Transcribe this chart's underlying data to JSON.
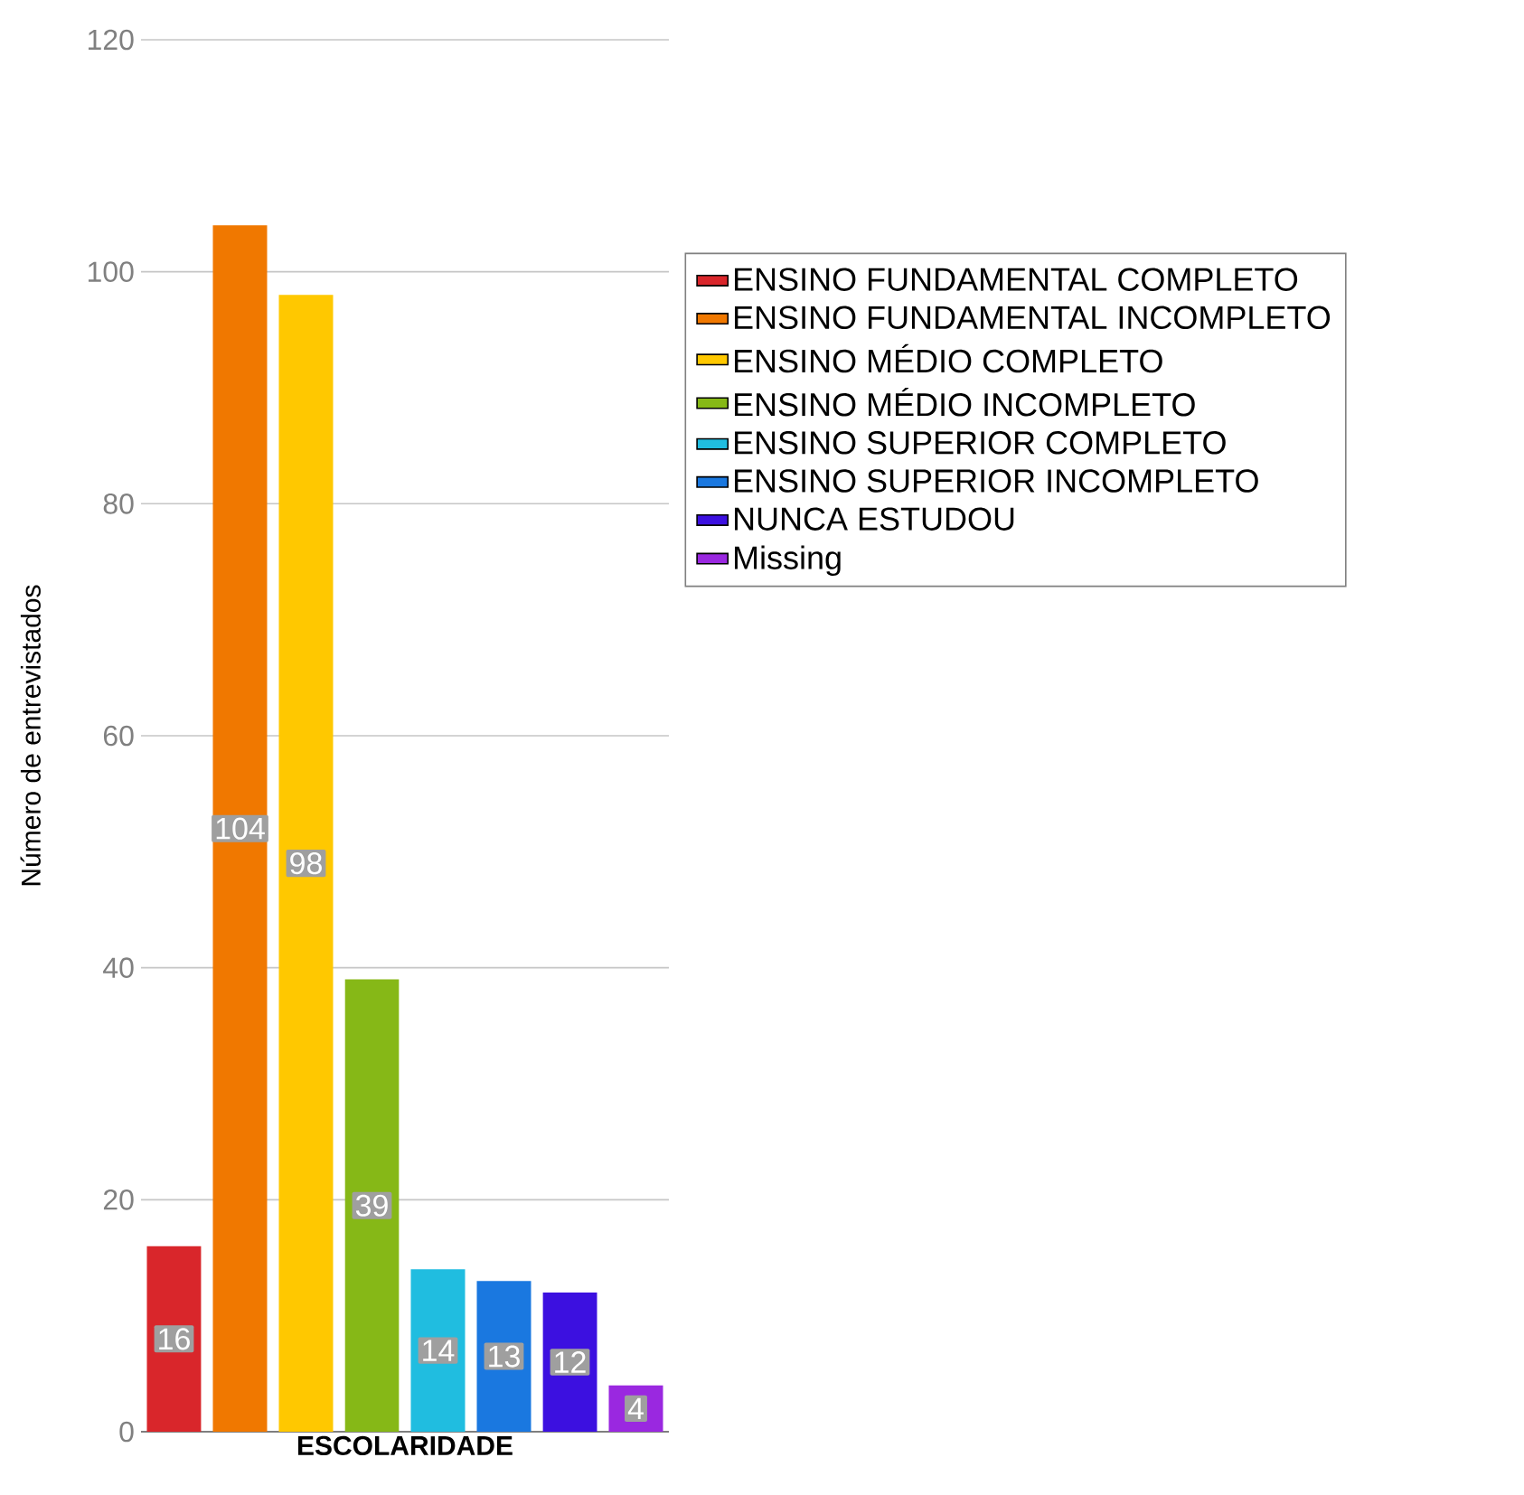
{
  "chart_data": {
    "type": "bar",
    "xlabel": "ESCOLARIDADE",
    "ylabel": "Número de entrevistados",
    "categories": [
      null,
      null,
      null,
      null,
      null,
      null,
      null,
      null
    ],
    "series": [
      {
        "name": "ENSINO FUNDAMENTAL COMPLETO",
        "color": "#d9262b",
        "values": [
          16,
          null,
          null,
          null,
          null,
          null,
          null,
          null
        ]
      },
      {
        "name": "ENSINO FUNDAMENTAL INCOMPLETO",
        "color": "#f07800",
        "values": [
          null,
          104,
          null,
          null,
          null,
          null,
          null,
          null
        ]
      },
      {
        "name": "ENSINO MÉDIO COMPLETO",
        "color": "#ffc800",
        "values": [
          null,
          null,
          98,
          null,
          null,
          null,
          null,
          null
        ]
      },
      {
        "name": "ENSINO MÉDIO INCOMPLETO",
        "color": "#86b817",
        "values": [
          null,
          null,
          null,
          39,
          null,
          null,
          null,
          null
        ]
      },
      {
        "name": "ENSINO SUPERIOR COMPLETO",
        "color": "#20bde0",
        "values": [
          null,
          null,
          null,
          null,
          14,
          null,
          null,
          null
        ]
      },
      {
        "name": "ENSINO SUPERIOR INCOMPLETO",
        "color": "#1a78e0",
        "values": [
          null,
          null,
          null,
          null,
          null,
          13,
          null,
          null
        ]
      },
      {
        "name": "NUNCA ESTUDOU",
        "color": "#3c10e0",
        "values": [
          null,
          null,
          null,
          null,
          null,
          null,
          12,
          null
        ]
      },
      {
        "name": "Missing",
        "color": "#9a28e0",
        "values": [
          null,
          null,
          null,
          null,
          null,
          null,
          null,
          4
        ]
      }
    ],
    "ylim": [
      0,
      120
    ],
    "yticks": [
      0,
      20,
      40,
      60,
      80,
      100,
      120
    ],
    "grid": "y",
    "legend": "right",
    "data_labels": true
  }
}
